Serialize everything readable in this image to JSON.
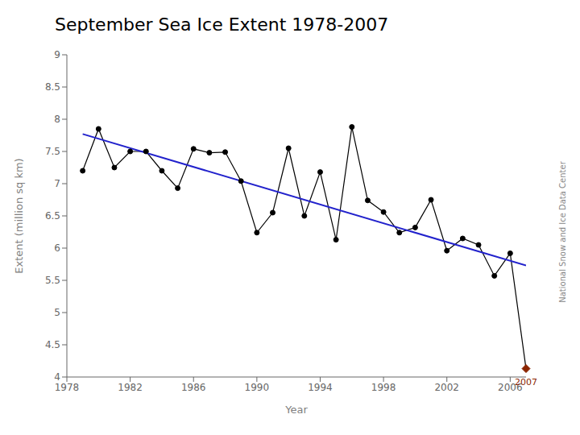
{
  "chart_data": {
    "type": "line",
    "title": "September Sea Ice Extent 1978-2007",
    "x_label": "Year",
    "y_label": "Extent (million sq km)",
    "x": [
      1979,
      1980,
      1981,
      1982,
      1983,
      1984,
      1985,
      1986,
      1987,
      1988,
      1989,
      1990,
      1991,
      1992,
      1993,
      1994,
      1995,
      1996,
      1997,
      1998,
      1999,
      2000,
      2001,
      2002,
      2003,
      2004,
      2005,
      2006,
      2007
    ],
    "series": [
      {
        "type": "line",
        "color": "#000000",
        "marker": "circle",
        "line_style": "solid",
        "values": [
          7.2,
          7.85,
          7.25,
          7.5,
          7.5,
          7.2,
          6.93,
          7.54,
          7.48,
          7.49,
          7.04,
          6.24,
          6.55,
          7.55,
          6.5,
          7.18,
          6.13,
          7.88,
          6.74,
          6.56,
          6.24,
          6.32,
          6.75,
          5.96,
          6.15,
          6.05,
          5.57,
          5.92,
          4.13
        ]
      },
      {
        "type": "line",
        "color": "#2222CC",
        "marker": "none",
        "line_style": "solid",
        "x": [
          1979,
          2007
        ],
        "values": [
          7.77,
          5.73
        ]
      }
    ],
    "annotations": [
      {
        "text": "2007",
        "x": 2007,
        "y": 4.13,
        "color": "#8B2500",
        "marker": "diamond"
      },
      {
        "text": "National Snow and Ice Data Center"
      }
    ],
    "xlim": [
      1978,
      2007
    ],
    "xticks": [
      1978,
      1982,
      1986,
      1990,
      1994,
      1998,
      2002,
      2006
    ],
    "ylim": [
      4.0,
      9.0
    ],
    "yticks": [
      4.0,
      4.5,
      5.0,
      5.5,
      6.0,
      6.5,
      7.0,
      7.5,
      8.0,
      8.5,
      9.0
    ],
    "grid": false
  }
}
